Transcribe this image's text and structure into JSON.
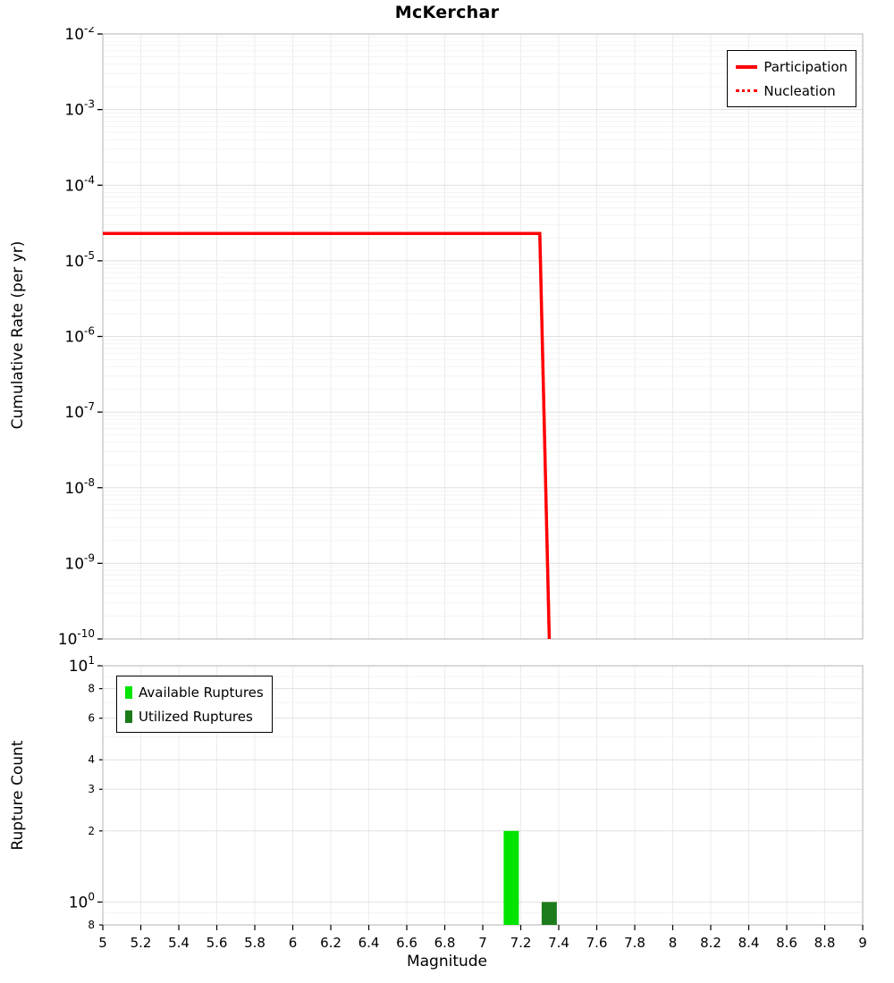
{
  "page": {
    "title": "McKerchar"
  },
  "chart_data": [
    {
      "type": "line",
      "title": "McKerchar",
      "ylabel": "Cumulative Rate (per yr)",
      "xlabel": "Magnitude",
      "xlim": [
        5,
        9
      ],
      "ylim_log": [
        1e-10,
        0.01
      ],
      "x_tick_step": 0.2,
      "grid": true,
      "legend_position": "top-right",
      "y_tick_exponents": [
        -2,
        -3,
        -4,
        -5,
        -6,
        -7,
        -8,
        -9,
        -10
      ],
      "series": [
        {
          "name": "Participation",
          "style": "solid",
          "color": "#ff0000",
          "points": [
            [
              5,
              2.3e-05
            ],
            [
              7.3,
              2.3e-05
            ],
            [
              7.35,
              1e-10
            ]
          ]
        },
        {
          "name": "Nucleation",
          "style": "dotted",
          "color": "#ff0000",
          "points": [
            [
              5,
              2.3e-05
            ],
            [
              7.3,
              2.3e-05
            ],
            [
              7.35,
              1e-10
            ]
          ]
        }
      ]
    },
    {
      "type": "bar",
      "ylabel": "Rupture Count",
      "xlabel": "Magnitude",
      "xlim": [
        5,
        9
      ],
      "ylim_log": [
        0.8,
        10
      ],
      "x_tick_step": 0.2,
      "grid": true,
      "legend_position": "top-left",
      "x_tick_labels": [
        "5",
        "5.2",
        "5.4",
        "5.6",
        "5.8",
        "6",
        "6.2",
        "6.4",
        "6.6",
        "6.8",
        "7",
        "7.2",
        "7.4",
        "7.6",
        "7.8",
        "8",
        "8.2",
        "8.4",
        "8.6",
        "8.8",
        "9"
      ],
      "y_ticks": [
        {
          "v": 10,
          "label": "10^1",
          "major": true
        },
        {
          "v": 8,
          "label": "8",
          "major": false
        },
        {
          "v": 6,
          "label": "6",
          "major": false
        },
        {
          "v": 4,
          "label": "4",
          "major": false
        },
        {
          "v": 3,
          "label": "3",
          "major": false
        },
        {
          "v": 2,
          "label": "2",
          "major": false
        },
        {
          "v": 1,
          "label": "10^0",
          "major": true
        },
        {
          "v": 0.8,
          "label": "8",
          "major": false
        }
      ],
      "bar_width_mag": 0.08,
      "bars": [
        {
          "name": "Available Ruptures",
          "x": 7.15,
          "count": 2,
          "color": "#00e400"
        },
        {
          "name": "Utilized Ruptures",
          "x": 7.35,
          "count": 1,
          "color": "#1c7c1c"
        }
      ]
    }
  ],
  "colors": {
    "line_red": "#ff0000",
    "available_green": "#00e400",
    "utilized_green": "#1c7c1c",
    "grid_major": "#e0e0e0",
    "grid_minor": "#f3f3f3",
    "plot_border": "#b3b3b3"
  }
}
